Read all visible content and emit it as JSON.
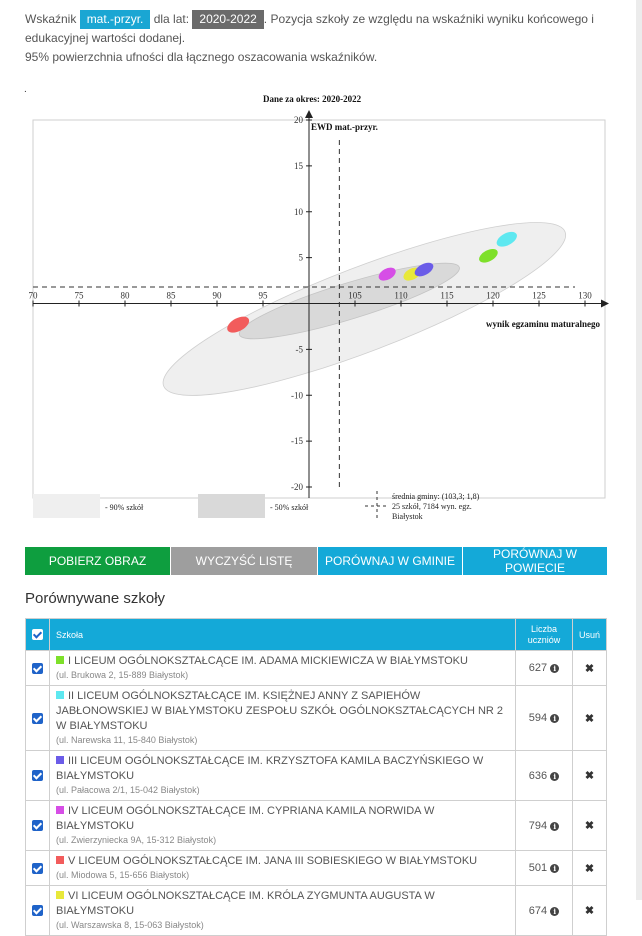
{
  "intro": {
    "prefix": "Wskaźnik",
    "indicator": "mat.-przyr.",
    "for_years_label": "dla lat:",
    "years": "2020-2022",
    "rest": ". Pozycja szkoły ze względu na wskaźniki wyniku końcowego i edukacyjnej wartości dodanej.",
    "line2": "95% powierzchnia ufności dla łącznego oszacowania wskaźników.",
    "dot": "."
  },
  "chart_data": {
    "type": "scatter",
    "title": "Dane za okres: 2020-2022",
    "ylabel": "EWD mat.-przyr.",
    "xlabel": "wynik egzaminu maturalnego",
    "xlim": [
      70,
      130
    ],
    "ylim": [
      -20,
      20
    ],
    "x_ticks": [
      "70",
      "75",
      "80",
      "85",
      "90",
      "95",
      "105",
      "110",
      "115",
      "120",
      "125",
      "130"
    ],
    "y_ticks": [
      "20",
      "15",
      "10",
      "5",
      "-5",
      "-10",
      "-15",
      "-20"
    ],
    "reference_lines": {
      "x": 103.3,
      "y": 1.8
    },
    "series": [
      {
        "color": "#f25c5c",
        "x": 92.3,
        "y": -2.3,
        "rx": 1.3,
        "ry": 0.7
      },
      {
        "color": "#d64ee6",
        "x": 108.5,
        "y": 3.2,
        "rx": 1.0,
        "ry": 0.6
      },
      {
        "color": "#e8e83a",
        "x": 111.2,
        "y": 3.2,
        "rx": 1.0,
        "ry": 0.6
      },
      {
        "color": "#6b5ce8",
        "x": 112.5,
        "y": 3.7,
        "rx": 1.1,
        "ry": 0.6
      },
      {
        "color": "#7ee02a",
        "x": 119.5,
        "y": 5.2,
        "rx": 1.1,
        "ry": 0.6
      },
      {
        "color": "#5ee8f0",
        "x": 121.5,
        "y": 7.0,
        "rx": 1.2,
        "ry": 0.65
      }
    ],
    "legend": {
      "p90": "- 90% szkół",
      "p50": "- 50% szkół",
      "avg_line1": "średnia gminy: (103,3; 1,8)",
      "avg_line2": "25 szkół, 7184 wyn. egz.",
      "avg_line3": "Białystok"
    }
  },
  "buttons": {
    "download": "POBIERZ OBRAZ",
    "clear": "WYCZYŚĆ LISTĘ",
    "compare_gmina": "PORÓWNAJ W GMINIE",
    "compare_powiat": "PORÓWNAJ W POWIECIE"
  },
  "section_title": "Porównywane szkoły",
  "table": {
    "col_school": "Szkoła",
    "col_count_1": "Liczba",
    "col_count_2": "uczniów",
    "col_remove": "Usuń",
    "remove_glyph": "✖",
    "info_glyph": "i",
    "rows": [
      {
        "color": "#7ee02a",
        "name": "I LICEUM OGÓLNOKSZTAŁCĄCE IM. ADAMA MICKIEWICZA W BIAŁYMSTOKU",
        "address": "(ul. Brukowa 2, 15-889 Białystok)",
        "count": "627"
      },
      {
        "color": "#5ee8f0",
        "name": "II LICEUM OGÓLNOKSZTAŁCĄCE IM. KSIĘŻNEJ ANNY Z SAPIEHÓW JABŁONOWSKIEJ W BIAŁYMSTOKU ZESPOŁU SZKÓŁ OGÓLNOKSZTAŁCĄCYCH NR 2 W BIAŁYMSTOKU",
        "address": "(ul. Narewska 11, 15-840 Białystok)",
        "count": "594"
      },
      {
        "color": "#6b5ce8",
        "name": "III LICEUM OGÓLNOKSZTAŁCĄCE IM. KRZYSZTOFA KAMILA BACZYŃSKIEGO W BIAŁYMSTOKU",
        "address": "(ul. Pałacowa 2/1, 15-042 Białystok)",
        "count": "636"
      },
      {
        "color": "#d64ee6",
        "name": "IV LICEUM OGÓLNOKSZTAŁCĄCE IM. CYPRIANA KAMILA NORWIDA W BIAŁYMSTOKU",
        "address": "(ul. Zwierzyniecka 9A, 15-312 Białystok)",
        "count": "794"
      },
      {
        "color": "#f25c5c",
        "name": "V LICEUM OGÓLNOKSZTAŁCĄCE IM. JANA III SOBIESKIEGO W BIAŁYMSTOKU",
        "address": "(ul. Miodowa 5, 15-656 Białystok)",
        "count": "501"
      },
      {
        "color": "#e8e83a",
        "name": "VI LICEUM OGÓLNOKSZTAŁCĄCE IM. KRÓLA ZYGMUNTA AUGUSTA W BIAŁYMSTOKU",
        "address": "(ul. Warszawska 8, 15-063 Białystok)",
        "count": "674"
      }
    ]
  }
}
